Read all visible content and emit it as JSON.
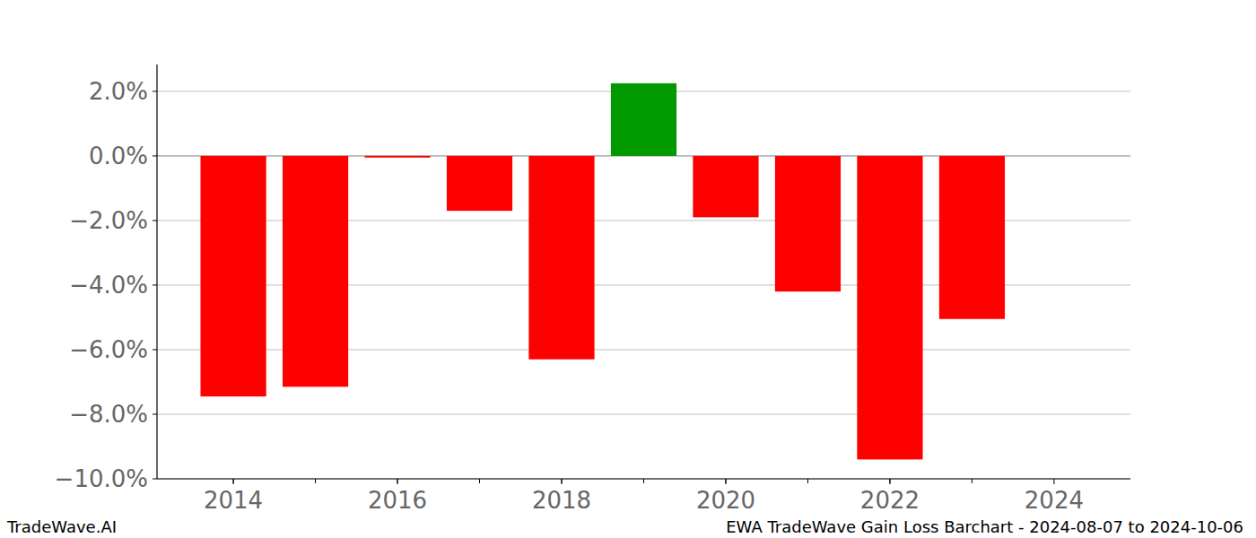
{
  "chart_data": {
    "type": "bar",
    "title": "EWA TradeWave Gain Loss Barchart - 2024-08-07 to 2024-10-06",
    "annotations": [
      "TradeWave.AI"
    ],
    "x": [
      2014,
      2015,
      2016,
      2017,
      2018,
      2019,
      2020,
      2021,
      2022,
      2023
    ],
    "values": [
      -7.45,
      -7.15,
      -0.05,
      -1.7,
      -6.3,
      2.25,
      -1.9,
      -4.2,
      -9.4,
      -5.05
    ],
    "colors": [
      "#ff0000",
      "#ff0000",
      "#ff0000",
      "#ff0000",
      "#ff0000",
      "#009900",
      "#ff0000",
      "#ff0000",
      "#ff0000",
      "#ff0000"
    ],
    "xlim": [
      2013.07,
      2024.93
    ],
    "xticks": [
      2014,
      2016,
      2018,
      2020,
      2022,
      2024
    ],
    "ylim": [
      -10,
      2.83
    ],
    "yticks": [
      {
        "value": -10,
        "label": "−10.0%"
      },
      {
        "value": -8,
        "label": "−8.0%"
      },
      {
        "value": -6,
        "label": "−6.0%"
      },
      {
        "value": -4,
        "label": "−4.0%"
      },
      {
        "value": -2,
        "label": "−2.0%"
      },
      {
        "value": 0,
        "label": "0.0%"
      },
      {
        "value": 2,
        "label": "2.0%"
      }
    ],
    "grid": true
  }
}
